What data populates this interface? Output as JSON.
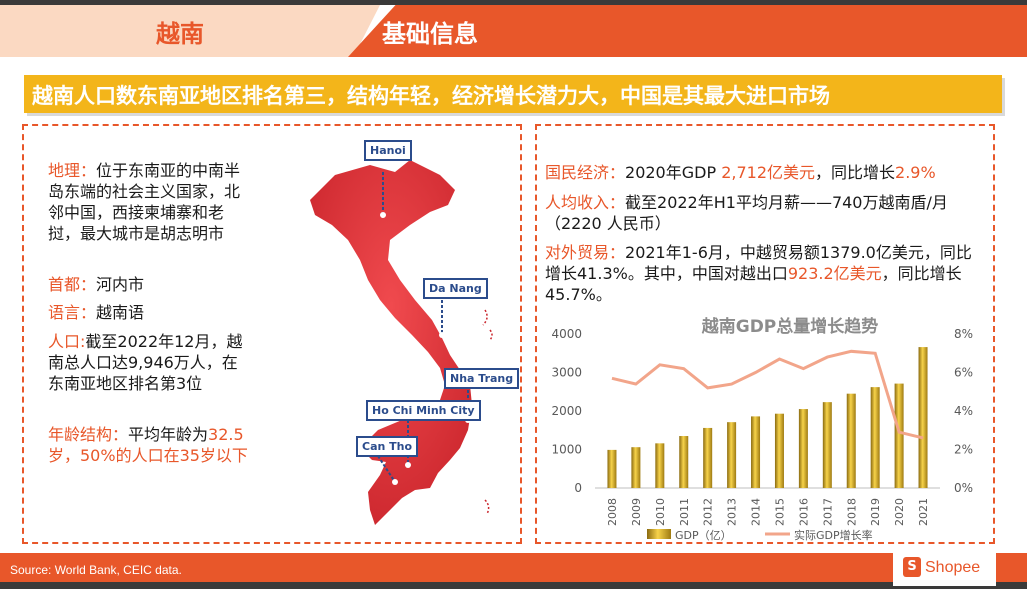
{
  "header": {
    "country": "越南",
    "section": "基础信息"
  },
  "headline": "越南人口数东南亚地区排名第三，结构年轻，经济增长潜力大，中国是其最大进口市场",
  "left": {
    "geo_label": "地理：",
    "geo_text": "位于东南亚的中南半岛东端的社会主义国家，北邻中国，西接柬埔寨和老挝，最大城市是胡志明市",
    "capital_label": "首都：",
    "capital_text": "河内市",
    "lang_label": "语言：",
    "lang_text": "越南语",
    "pop_label": "人口:",
    "pop_text": "截至2022年12月，越南总人口达9,946万人，在东南亚地区排名第3位",
    "age_label": "年龄结构：",
    "age_text_1": "平均年龄为",
    "age_text_2": "32.5岁，50%的人口在35岁以下"
  },
  "map": {
    "cities": [
      "Hanoi",
      "Da Nang",
      "Nha Trang",
      "Ho Chi Minh City",
      "Can Tho"
    ],
    "color": "#e63a3f"
  },
  "right": {
    "econ_label": "国民经济：",
    "econ_1": "2020年GDP ",
    "econ_2": "2,712亿美元",
    "econ_3": "，同比增长",
    "econ_4": "2.9%",
    "income_label": "人均收入：",
    "income_text": "截至2022年H1平均月薪——740万越南盾/月（2220 人民币）",
    "trade_label": "对外贸易：",
    "trade_1": "2021年1-6月，中越贸易额1379.0亿美元，同比增长41.3%。其中，中国对越出口",
    "trade_2": "923.2亿美元",
    "trade_3": "，同比增长45.7%。"
  },
  "chart_data": {
    "type": "bar",
    "title": "越南GDP总量增长趋势",
    "categories": [
      "2008",
      "2009",
      "2010",
      "2011",
      "2012",
      "2013",
      "2014",
      "2015",
      "2016",
      "2017",
      "2018",
      "2019",
      "2020",
      "2021"
    ],
    "series": [
      {
        "name": "GDP（亿）",
        "type": "bar",
        "axis": "left",
        "values": [
          990,
          1060,
          1160,
          1350,
          1560,
          1710,
          1860,
          1930,
          2050,
          2230,
          2450,
          2620,
          2712,
          3660
        ]
      },
      {
        "name": "实际GDP增长率",
        "type": "line",
        "axis": "right",
        "values": [
          5.7,
          5.4,
          6.4,
          6.2,
          5.2,
          5.4,
          6.0,
          6.7,
          6.2,
          6.8,
          7.1,
          7.0,
          2.9,
          2.6
        ]
      }
    ],
    "y_left": {
      "ticks": [
        "0",
        "1000",
        "2000",
        "3000",
        "4000"
      ],
      "ylim": [
        0,
        4000
      ]
    },
    "y_right": {
      "ticks": [
        "0%",
        "2%",
        "4%",
        "6%",
        "8%"
      ],
      "ylim": [
        0,
        8
      ]
    },
    "colors": {
      "bar": "#d4a017",
      "line": "#f2a58a"
    },
    "legend": "bottom"
  },
  "footer": {
    "source": "Source: World Bank, CEIC data.",
    "logo": "Shopee",
    "logo_glyph": "S"
  }
}
